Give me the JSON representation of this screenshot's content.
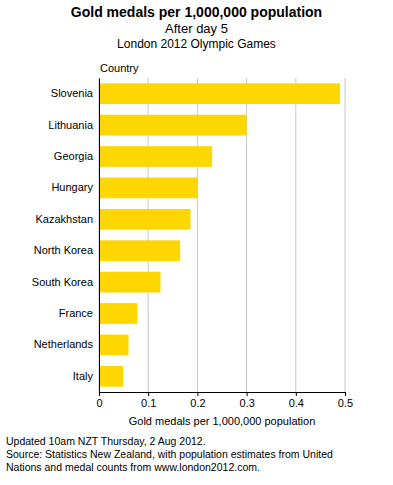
{
  "chart_data": {
    "type": "bar",
    "orientation": "horizontal",
    "title": "Gold medals per 1,000,000 population",
    "subtitle": [
      "After day 5",
      "London 2012 Olympic Games"
    ],
    "y_label": "Country",
    "x_label": "Gold medals per 1,000,000 population",
    "categories": [
      "Slovenia",
      "Lithuania",
      "Georgia",
      "Hungary",
      "Kazakhstan",
      "North Korea",
      "South Korea",
      "France",
      "Netherlands",
      "Italy"
    ],
    "values": [
      0.49,
      0.3,
      0.23,
      0.2,
      0.186,
      0.165,
      0.125,
      0.078,
      0.06,
      0.049
    ],
    "color": "#ffd700",
    "xlim": [
      0,
      0.5
    ],
    "xticks": [
      0,
      0.1,
      0.2,
      0.3,
      0.4,
      0.5
    ],
    "grid": true,
    "annotations": [
      "Updated 10am NZT Thursday, 2 Aug 2012.",
      "Source: Statistics New Zealand, with population estimates from United",
      "Nations and medal counts from www.london2012.com."
    ]
  }
}
